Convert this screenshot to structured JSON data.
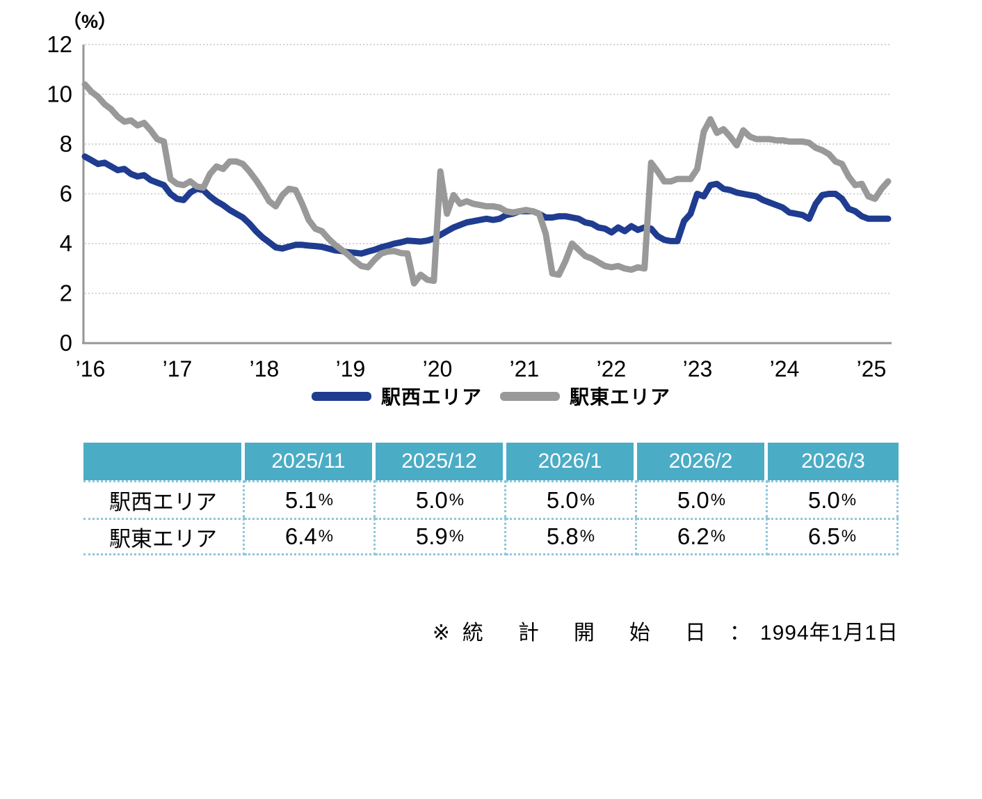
{
  "chart": {
    "unit_label": "（%）",
    "y_ticks": [
      0,
      2,
      4,
      6,
      8,
      10,
      12
    ],
    "x_tick_labels": [
      "’16",
      "’17",
      "’18",
      "’19",
      "’20",
      "’21",
      "’22",
      "’23",
      "’24",
      "’25"
    ],
    "grid_color": "#c3c3c3",
    "axis_color": "#969696"
  },
  "chart_data": {
    "type": "line",
    "title": "",
    "ylabel": "（%）",
    "ylim": [
      0,
      12
    ],
    "grid": "horizontal-dotted",
    "legend_position": "bottom-center",
    "x_frequency": "monthly",
    "x_start": "2016/1",
    "x_end": "2026/3",
    "x_tick_labels": [
      "’16",
      "’17",
      "’18",
      "’19",
      "’20",
      "’21",
      "’22",
      "’23",
      "’24",
      "’25"
    ],
    "series": [
      {
        "name": "駅西エリア",
        "color": "#1f3c90",
        "values": [
          7.5,
          7.35,
          7.2,
          7.25,
          7.1,
          6.95,
          7.0,
          6.8,
          6.7,
          6.75,
          6.55,
          6.45,
          6.35,
          6.0,
          5.8,
          5.75,
          6.05,
          6.2,
          6.15,
          5.9,
          5.7,
          5.55,
          5.35,
          5.2,
          5.05,
          4.8,
          4.5,
          4.25,
          4.05,
          3.85,
          3.8,
          3.88,
          3.95,
          3.95,
          3.92,
          3.9,
          3.87,
          3.8,
          3.73,
          3.7,
          3.65,
          3.63,
          3.6,
          3.68,
          3.75,
          3.85,
          3.92,
          4.0,
          4.05,
          4.12,
          4.1,
          4.08,
          4.12,
          4.2,
          4.35,
          4.5,
          4.65,
          4.75,
          4.85,
          4.9,
          4.95,
          5.0,
          4.95,
          5.0,
          5.15,
          5.2,
          5.3,
          5.3,
          5.3,
          5.2,
          5.05,
          5.05,
          5.1,
          5.1,
          5.05,
          5.0,
          4.85,
          4.8,
          4.65,
          4.6,
          4.45,
          4.65,
          4.5,
          4.7,
          4.55,
          4.65,
          4.6,
          4.3,
          4.15,
          4.1,
          4.1,
          4.9,
          5.2,
          6.0,
          5.9,
          6.35,
          6.4,
          6.2,
          6.15,
          6.05,
          6.0,
          5.95,
          5.9,
          5.75,
          5.65,
          5.55,
          5.45,
          5.25,
          5.2,
          5.15,
          5.0,
          5.6,
          5.95,
          6.0,
          6.0,
          5.8,
          5.4,
          5.3,
          5.1,
          5.0,
          5.0,
          5.0,
          5.0
        ]
      },
      {
        "name": "駅東エリア",
        "color": "#999999",
        "values": [
          10.4,
          10.1,
          9.9,
          9.6,
          9.4,
          9.1,
          8.9,
          8.95,
          8.75,
          8.85,
          8.55,
          8.2,
          8.1,
          6.6,
          6.4,
          6.35,
          6.5,
          6.3,
          6.25,
          6.8,
          7.1,
          7.0,
          7.3,
          7.3,
          7.2,
          6.9,
          6.55,
          6.15,
          5.7,
          5.5,
          5.95,
          6.2,
          6.15,
          5.6,
          4.95,
          4.6,
          4.5,
          4.2,
          3.95,
          3.75,
          3.55,
          3.3,
          3.1,
          3.05,
          3.35,
          3.6,
          3.68,
          3.7,
          3.62,
          3.6,
          2.4,
          2.75,
          2.55,
          2.5,
          6.9,
          5.2,
          5.95,
          5.6,
          5.7,
          5.6,
          5.55,
          5.5,
          5.5,
          5.45,
          5.3,
          5.25,
          5.3,
          5.35,
          5.3,
          5.2,
          4.4,
          2.8,
          2.75,
          3.3,
          4.0,
          3.75,
          3.5,
          3.4,
          3.25,
          3.1,
          3.05,
          3.1,
          3.0,
          2.95,
          3.05,
          3.0,
          7.25,
          6.9,
          6.5,
          6.5,
          6.6,
          6.6,
          6.6,
          7.0,
          8.5,
          9.0,
          8.45,
          8.6,
          8.3,
          7.95,
          8.55,
          8.3,
          8.2,
          8.2,
          8.2,
          8.15,
          8.15,
          8.1,
          8.1,
          8.1,
          8.05,
          7.85,
          7.75,
          7.6,
          7.3,
          7.2,
          6.7,
          6.35,
          6.4,
          5.9,
          5.8,
          6.2,
          6.5
        ]
      }
    ]
  },
  "legend": {
    "items": [
      {
        "label": "駅西エリア",
        "color": "#1f3c90"
      },
      {
        "label": "駅東エリア",
        "color": "#999999"
      }
    ]
  },
  "table": {
    "header_bg": "#4bacc6",
    "border_color": "#8fc6d9",
    "columns": [
      "",
      "2025/11",
      "2025/12",
      "2026/1",
      "2026/2",
      "2026/3"
    ],
    "unit": "%",
    "rows": [
      {
        "label": "駅西エリア",
        "values": [
          "5.1",
          "5.0",
          "5.0",
          "5.0",
          "5.0"
        ]
      },
      {
        "label": "駅東エリア",
        "values": [
          "6.4",
          "5.9",
          "5.8",
          "6.2",
          "6.5"
        ]
      }
    ]
  },
  "footnote": {
    "marker": "※",
    "label": "統計開始日",
    "colon": "：",
    "value": "1994年1月1日"
  }
}
